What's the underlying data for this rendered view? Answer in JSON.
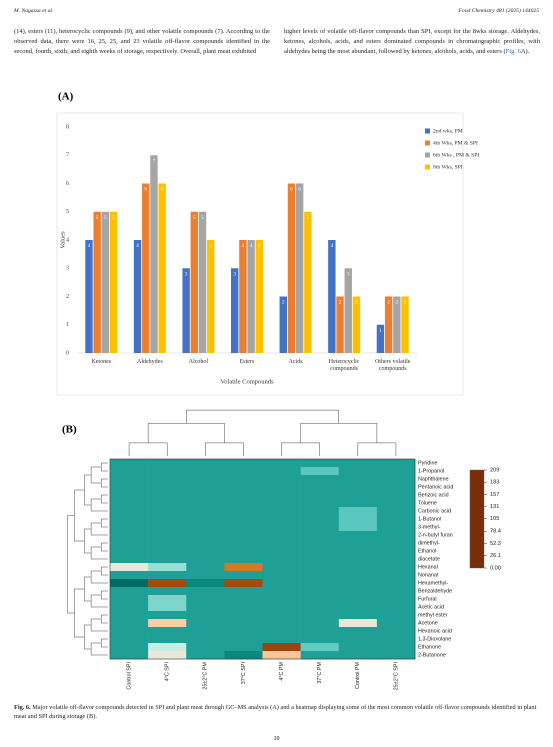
{
  "header": {
    "authors": "M. Nagassa et al.",
    "journal": "Food Chemistry 481 (2025) 144025"
  },
  "body": {
    "left": "(14), esters (11), heterocyclic compounds (9), and other volatile compounds (7). According to the observed data, there were 16, 25, 25, and 23 volatile off-flavor compounds identified in the second, fourth, sixth, and eighth weeks of storage, respectively. Overall, plant meat exhibited",
    "right": "higher levels of volatile off-flavor compounds than SPI, except for the 8wks storage. Aldehydes, ketones, alcohols, acids, and esters dominated compounds in chromatographic profiles, with aldehydes being the most abundant, followed by ketones, alcohols, acids, and esters (",
    "right_link": "Fig. 6",
    "right_end": "A)."
  },
  "figure": {
    "panel_a_label": "(A)",
    "panel_a": {
      "type": "bar",
      "ylabel": "Values",
      "xlabel": "Volatile Compounds",
      "categories": [
        "Ketones",
        "Aldehydes",
        "Alcohol",
        "Esters",
        "Acids",
        "Heterocyclic compounds",
        "Others volatile compounds"
      ],
      "series": [
        {
          "name": "2nd wks, PM",
          "color": "#4472c4",
          "values": [
            4,
            4,
            3,
            3,
            2,
            4,
            1
          ]
        },
        {
          "name": "4th Wks, PM & SPI",
          "color": "#ed7d31",
          "values": [
            5,
            6,
            5,
            4,
            6,
            2,
            2
          ]
        },
        {
          "name": "6th Wks , PM & SPI",
          "color": "#a5a5a5",
          "values": [
            5,
            7,
            5,
            4,
            6,
            3,
            2
          ]
        },
        {
          "name": "8th Wks,  SPI",
          "color": "#ffc000",
          "values": [
            5,
            6,
            4,
            4,
            5,
            2,
            2
          ]
        }
      ],
      "ylim": [
        0,
        8
      ],
      "yticks": [
        0,
        1,
        2,
        3,
        4,
        5,
        6,
        7,
        8
      ],
      "grid": false
    },
    "panel_b_label": "(B)",
    "panel_b": {
      "type": "heatmap",
      "rows": [
        "Pyridine",
        "1-Propanol",
        "Naphthalene",
        "Pentanoic acid",
        "Benzoic acid",
        "Toluene",
        "Carbonic acid",
        "1-Butanol",
        "3-methyl-",
        "2-n-butyl furan",
        "dimethyl-",
        "Ethanol",
        "diacetate",
        "Hexanal",
        "Nonanal",
        "Hexamethyl-",
        "Benzaldehyde",
        "Furfural",
        "Acetic acid",
        "methyl ester",
        "Acetone",
        "Hexanoic acid",
        "1,3-Dioxolane",
        "Ethanone",
        "2-Butanone"
      ],
      "columns": [
        "Control SPI",
        "4°C SPI",
        "25±2°C PM",
        "37°C SPI",
        "4°C PM",
        "37°C PM",
        "Control PM",
        "25±2°C SPI"
      ],
      "values": [
        [
          40,
          40,
          40,
          40,
          40,
          40,
          40,
          40
        ],
        [
          40,
          40,
          40,
          40,
          40,
          58,
          40,
          40
        ],
        [
          40,
          40,
          40,
          40,
          40,
          40,
          40,
          40
        ],
        [
          40,
          40,
          40,
          40,
          40,
          40,
          40,
          40
        ],
        [
          40,
          40,
          40,
          40,
          40,
          40,
          40,
          40
        ],
        [
          40,
          40,
          40,
          40,
          40,
          40,
          40,
          40
        ],
        [
          40,
          40,
          40,
          40,
          40,
          40,
          58,
          40
        ],
        [
          40,
          40,
          40,
          40,
          40,
          40,
          58,
          40
        ],
        [
          40,
          40,
          40,
          40,
          40,
          40,
          58,
          40
        ],
        [
          40,
          40,
          40,
          40,
          40,
          40,
          40,
          40
        ],
        [
          40,
          40,
          40,
          40,
          40,
          40,
          40,
          40
        ],
        [
          40,
          40,
          40,
          40,
          40,
          40,
          40,
          40
        ],
        [
          40,
          40,
          40,
          40,
          40,
          40,
          40,
          40
        ],
        [
          95,
          70,
          40,
          165,
          40,
          40,
          40,
          40
        ],
        [
          40,
          40,
          40,
          40,
          40,
          40,
          40,
          40
        ],
        [
          22,
          190,
          30,
          190,
          40,
          40,
          40,
          40
        ],
        [
          40,
          40,
          40,
          40,
          40,
          40,
          40,
          40
        ],
        [
          40,
          65,
          40,
          40,
          40,
          40,
          40,
          40
        ],
        [
          40,
          65,
          40,
          40,
          40,
          40,
          40,
          40
        ],
        [
          40,
          40,
          40,
          40,
          40,
          40,
          40,
          40
        ],
        [
          40,
          120,
          40,
          40,
          40,
          40,
          95,
          40
        ],
        [
          40,
          40,
          40,
          40,
          40,
          40,
          40,
          40
        ],
        [
          40,
          40,
          40,
          40,
          40,
          40,
          40,
          40
        ],
        [
          40,
          80,
          40,
          40,
          195,
          60,
          40,
          40
        ],
        [
          40,
          95,
          40,
          30,
          125,
          40,
          40,
          40
        ]
      ],
      "zlim": [
        0,
        209
      ],
      "scale_ticks": [
        209,
        183,
        157,
        131,
        105,
        78.4,
        52.3,
        26.1,
        {
          "value": 0,
          "label": "0.00"
        }
      ],
      "scale_colors": [
        "#7a2e08",
        "#b5560f",
        "#e8862b",
        "#f7bd86",
        "#fde6cf",
        "#c6ede6",
        "#3bbdb2",
        "#007f76",
        "#000000"
      ]
    },
    "caption_label": "Fig. 6.",
    "caption": "Major volatile off-flavor compounds detected in SPI and plant meat through GC–MS analysis (A) and a heatmap displaying some of the most common volatile off-flavor compounds identified in plant meat and SPI during storage (B)."
  },
  "page_number": "10"
}
